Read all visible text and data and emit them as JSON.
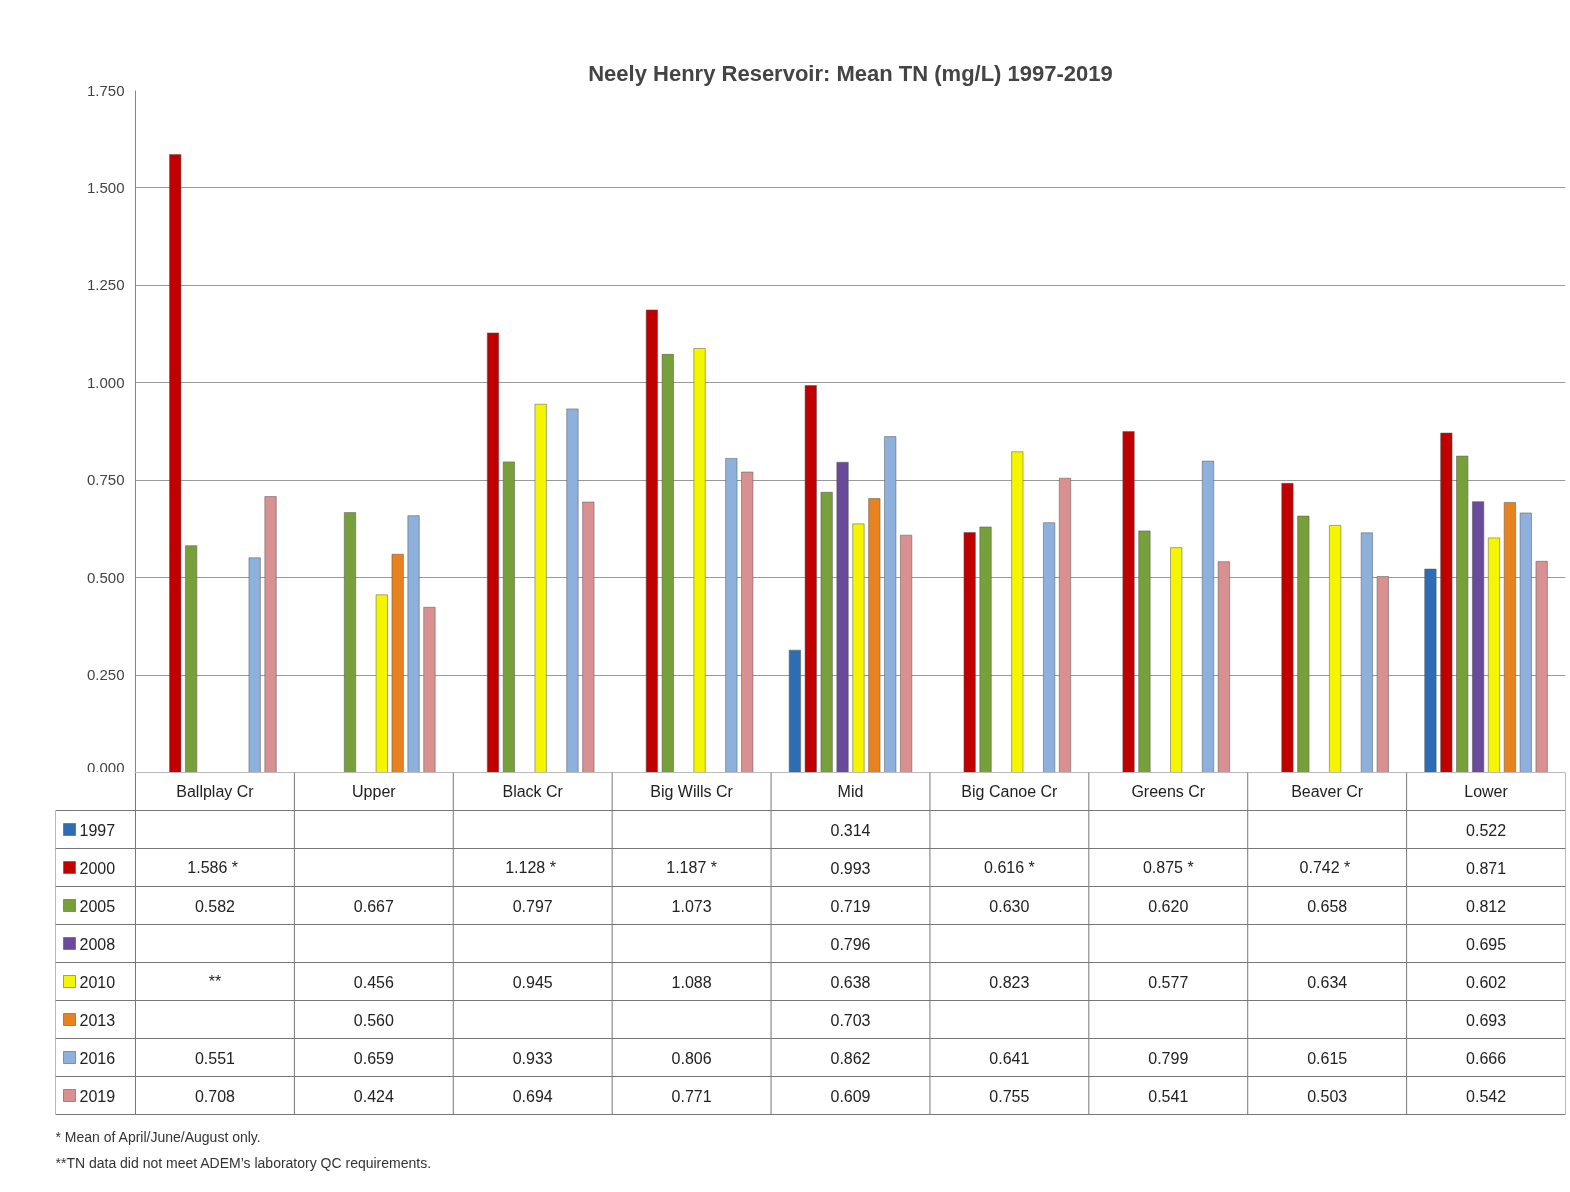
{
  "chart_data": {
    "type": "bar",
    "title": "Neely Henry Reservoir: Mean TN (mg/L) 1997-2019",
    "categories": [
      "Ballplay Cr",
      "Upper",
      "Black Cr",
      "Big Wills Cr",
      "Mid",
      "Big Canoe Cr",
      "Greens Cr",
      "Beaver Cr",
      "Lower"
    ],
    "series": [
      {
        "name": "1997",
        "color": "#2e6db4",
        "values": [
          null,
          null,
          null,
          null,
          0.314,
          null,
          null,
          null,
          0.522
        ],
        "value_labels": [
          null,
          null,
          null,
          null,
          "0.314",
          null,
          null,
          null,
          "0.522"
        ]
      },
      {
        "name": "2000",
        "color": "#c00000",
        "values": [
          1.586,
          null,
          1.128,
          1.187,
          0.993,
          0.616,
          0.875,
          0.742,
          0.871
        ],
        "value_labels": [
          "1.586  *",
          null,
          "1.128  *",
          "1.187 *",
          "0.993",
          "0.616 *",
          "0.875 *",
          "0.742  *",
          "0.871"
        ]
      },
      {
        "name": "2005",
        "color": "#77a03a",
        "values": [
          0.582,
          0.667,
          0.797,
          1.073,
          0.719,
          0.63,
          0.62,
          0.658,
          0.812
        ],
        "value_labels": [
          "0.582",
          "0.667",
          "0.797",
          "1.073",
          "0.719",
          "0.630",
          "0.620",
          "0.658",
          "0.812"
        ]
      },
      {
        "name": "2008",
        "color": "#6a4a9a",
        "values": [
          null,
          null,
          null,
          null,
          0.796,
          null,
          null,
          null,
          0.695
        ],
        "value_labels": [
          null,
          null,
          null,
          null,
          "0.796",
          null,
          null,
          null,
          "0.695"
        ]
      },
      {
        "name": "2010",
        "color": "#f5f500",
        "values": [
          null,
          0.456,
          0.945,
          1.088,
          0.638,
          0.823,
          0.577,
          0.634,
          0.602
        ],
        "value_labels": [
          "**",
          "0.456",
          "0.945",
          "1.088",
          "0.638",
          "0.823",
          "0.577",
          "0.634",
          "0.602"
        ]
      },
      {
        "name": "2013",
        "color": "#e8821e",
        "values": [
          null,
          0.56,
          null,
          null,
          0.703,
          null,
          null,
          null,
          0.693
        ],
        "value_labels": [
          null,
          "0.560",
          null,
          null,
          "0.703",
          null,
          null,
          null,
          "0.693"
        ]
      },
      {
        "name": "2016",
        "color": "#8eb0dc",
        "values": [
          0.551,
          0.659,
          0.933,
          0.806,
          0.862,
          0.641,
          0.799,
          0.615,
          0.666
        ],
        "value_labels": [
          "0.551",
          "0.659",
          "0.933",
          "0.806",
          "0.862",
          "0.641",
          "0.799",
          "0.615",
          "0.666"
        ]
      },
      {
        "name": "2019",
        "color": "#d89090",
        "values": [
          0.708,
          0.424,
          0.694,
          0.771,
          0.609,
          0.755,
          0.541,
          0.503,
          0.542
        ],
        "value_labels": [
          "0.708",
          "0.424",
          "0.694",
          "0.771",
          "0.609",
          "0.755",
          "0.541",
          "0.503",
          "0.542"
        ]
      }
    ],
    "ylim": [
      0,
      1.75
    ],
    "yticks": [
      {
        "value": 0,
        "label": "0.000"
      },
      {
        "value": 0.25,
        "label": "0.250"
      },
      {
        "value": 0.5,
        "label": "0.500"
      },
      {
        "value": 0.75,
        "label": "0.750"
      },
      {
        "value": 1.0,
        "label": "1.000"
      },
      {
        "value": 1.25,
        "label": "1.250"
      },
      {
        "value": 1.5,
        "label": "1.500"
      },
      {
        "value": 1.75,
        "label": "1.750"
      }
    ],
    "grid": "y",
    "legend": "bottom",
    "annotations": [
      "* Mean of April/June/August only.",
      "**TN data did not meet ADEM’s laboratory QC requirements."
    ]
  }
}
